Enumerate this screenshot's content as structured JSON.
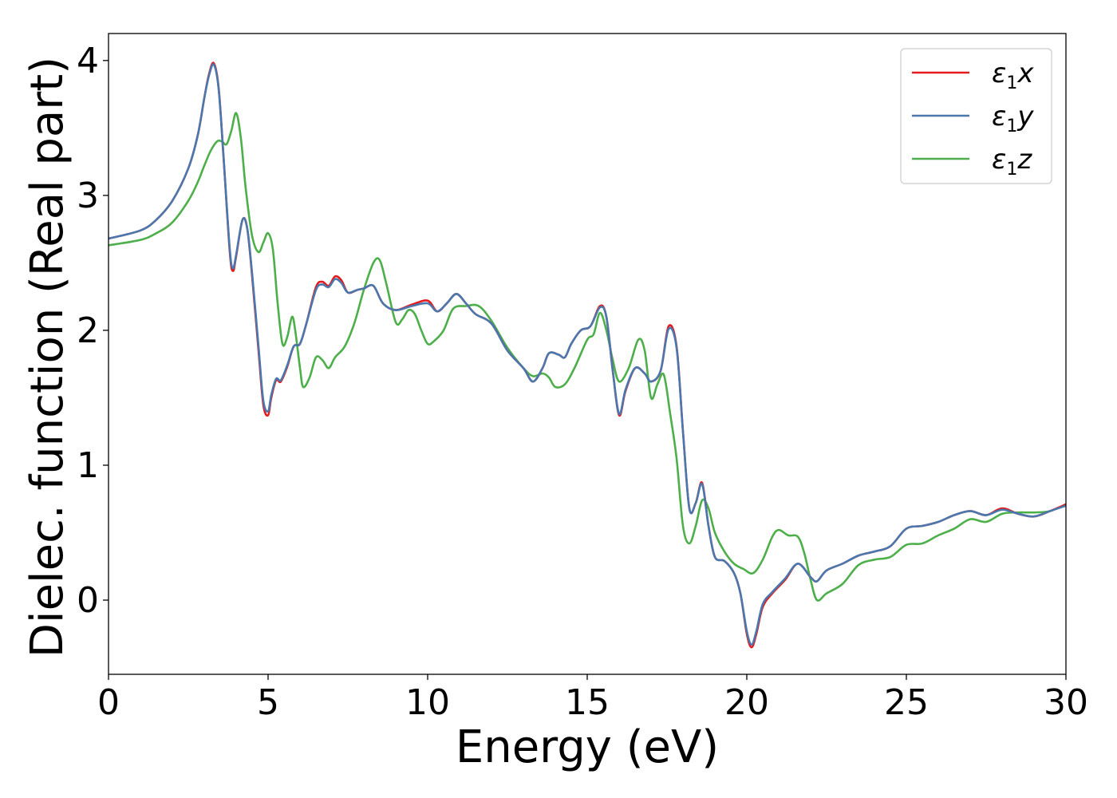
{
  "chart_data": {
    "type": "line",
    "xlabel": "Energy (eV)",
    "ylabel": "Dielec. function (Real part)",
    "xlim": [
      0,
      30
    ],
    "ylim": [
      -0.55,
      4.2
    ],
    "xticks": [
      0,
      5,
      10,
      15,
      20,
      25,
      30
    ],
    "xtick_labels": [
      "0",
      "5",
      "10",
      "15",
      "20",
      "25",
      "30"
    ],
    "yticks": [
      0,
      1,
      2,
      3,
      4
    ],
    "ytick_labels": [
      "0",
      "1",
      "2",
      "3",
      "4"
    ],
    "grid": false,
    "legend_position": "top-right",
    "series": [
      {
        "name": "ε1x",
        "symbol": "ε",
        "subscript": "1",
        "suffix": "x",
        "color": "#e41a1c",
        "x": [
          0,
          1,
          1.5,
          2,
          2.5,
          2.8,
          3.0,
          3.15,
          3.3,
          3.45,
          3.6,
          3.8,
          3.9,
          4.0,
          4.2,
          4.35,
          4.5,
          4.7,
          4.85,
          5.0,
          5.1,
          5.25,
          5.4,
          5.6,
          5.8,
          6.0,
          6.2,
          6.5,
          6.7,
          6.9,
          7.1,
          7.3,
          7.5,
          7.8,
          8.0,
          8.3,
          8.6,
          9.0,
          9.5,
          10.0,
          10.3,
          10.6,
          10.9,
          11.2,
          11.5,
          12.0,
          12.5,
          13.0,
          13.3,
          13.6,
          13.8,
          14.1,
          14.3,
          14.5,
          14.8,
          15.1,
          15.4,
          15.6,
          15.8,
          16.0,
          16.2,
          16.5,
          16.8,
          17.0,
          17.3,
          17.55,
          17.8,
          18.0,
          18.2,
          18.4,
          18.6,
          18.8,
          19.0,
          19.3,
          19.6,
          19.8,
          20.0,
          20.15,
          20.3,
          20.5,
          20.8,
          21.2,
          21.6,
          22.0,
          22.2,
          22.5,
          23.0,
          23.5,
          24.0,
          24.5,
          25.0,
          25.5,
          26.0,
          26.5,
          27.0,
          27.5,
          28.0,
          28.5,
          29.0,
          29.5,
          30.0
        ],
        "y": [
          2.68,
          2.74,
          2.82,
          2.96,
          3.2,
          3.45,
          3.72,
          3.9,
          3.98,
          3.8,
          3.3,
          2.58,
          2.44,
          2.55,
          2.82,
          2.75,
          2.4,
          1.85,
          1.45,
          1.37,
          1.5,
          1.63,
          1.62,
          1.73,
          1.88,
          1.9,
          2.05,
          2.32,
          2.36,
          2.33,
          2.4,
          2.37,
          2.28,
          2.3,
          2.31,
          2.33,
          2.2,
          2.15,
          2.19,
          2.22,
          2.14,
          2.2,
          2.27,
          2.2,
          2.12,
          2.05,
          1.85,
          1.72,
          1.62,
          1.72,
          1.83,
          1.82,
          1.8,
          1.9,
          2.0,
          2.03,
          2.18,
          2.1,
          1.7,
          1.37,
          1.55,
          1.72,
          1.68,
          1.62,
          1.7,
          2.03,
          1.88,
          1.25,
          0.68,
          0.72,
          0.87,
          0.55,
          0.32,
          0.29,
          0.2,
          0.05,
          -0.25,
          -0.35,
          -0.25,
          -0.05,
          0.05,
          0.15,
          0.27,
          0.17,
          0.14,
          0.22,
          0.27,
          0.33,
          0.36,
          0.4,
          0.53,
          0.55,
          0.58,
          0.63,
          0.66,
          0.63,
          0.68,
          0.64,
          0.62,
          0.66,
          0.71
        ]
      },
      {
        "name": "ε1y",
        "symbol": "ε",
        "subscript": "1",
        "suffix": "y",
        "color": "#4a78ae",
        "x": [
          0,
          1,
          1.5,
          2,
          2.5,
          2.8,
          3.0,
          3.15,
          3.3,
          3.45,
          3.6,
          3.8,
          3.9,
          4.0,
          4.2,
          4.35,
          4.5,
          4.7,
          4.85,
          5.0,
          5.1,
          5.25,
          5.4,
          5.6,
          5.8,
          6.0,
          6.2,
          6.5,
          6.7,
          6.9,
          7.1,
          7.3,
          7.5,
          7.8,
          8.0,
          8.3,
          8.6,
          9.0,
          9.5,
          10.0,
          10.3,
          10.6,
          10.9,
          11.2,
          11.5,
          12.0,
          12.5,
          13.0,
          13.3,
          13.6,
          13.8,
          14.1,
          14.3,
          14.5,
          14.8,
          15.1,
          15.4,
          15.6,
          15.8,
          16.0,
          16.2,
          16.5,
          16.8,
          17.0,
          17.3,
          17.55,
          17.8,
          18.0,
          18.2,
          18.4,
          18.6,
          18.8,
          19.0,
          19.3,
          19.6,
          19.8,
          20.0,
          20.15,
          20.3,
          20.5,
          20.8,
          21.2,
          21.6,
          22.0,
          22.2,
          22.5,
          23.0,
          23.5,
          24.0,
          24.5,
          25.0,
          25.5,
          26.0,
          26.5,
          27.0,
          27.5,
          28.0,
          28.5,
          29.0,
          29.5,
          30.0
        ],
        "y": [
          2.68,
          2.74,
          2.82,
          2.96,
          3.2,
          3.45,
          3.72,
          3.89,
          3.97,
          3.79,
          3.3,
          2.6,
          2.46,
          2.56,
          2.82,
          2.75,
          2.42,
          1.88,
          1.48,
          1.4,
          1.52,
          1.64,
          1.63,
          1.74,
          1.88,
          1.9,
          2.05,
          2.3,
          2.34,
          2.32,
          2.38,
          2.35,
          2.28,
          2.3,
          2.31,
          2.33,
          2.2,
          2.15,
          2.18,
          2.2,
          2.14,
          2.2,
          2.27,
          2.2,
          2.12,
          2.05,
          1.85,
          1.72,
          1.62,
          1.72,
          1.83,
          1.82,
          1.8,
          1.9,
          2.0,
          2.03,
          2.17,
          2.1,
          1.7,
          1.38,
          1.56,
          1.72,
          1.68,
          1.62,
          1.7,
          2.01,
          1.87,
          1.25,
          0.68,
          0.72,
          0.86,
          0.55,
          0.32,
          0.29,
          0.2,
          0.05,
          -0.23,
          -0.33,
          -0.23,
          -0.03,
          0.06,
          0.16,
          0.27,
          0.17,
          0.14,
          0.22,
          0.27,
          0.33,
          0.36,
          0.4,
          0.53,
          0.55,
          0.58,
          0.63,
          0.66,
          0.63,
          0.67,
          0.64,
          0.62,
          0.66,
          0.7
        ]
      },
      {
        "name": "ε1z",
        "symbol": "ε",
        "subscript": "1",
        "suffix": "z",
        "color": "#4daf4a",
        "x": [
          0,
          1,
          1.5,
          2,
          2.5,
          2.8,
          3.0,
          3.2,
          3.4,
          3.55,
          3.7,
          3.85,
          4.0,
          4.15,
          4.3,
          4.5,
          4.7,
          4.85,
          5.0,
          5.15,
          5.3,
          5.45,
          5.6,
          5.75,
          5.85,
          6.0,
          6.1,
          6.3,
          6.5,
          6.7,
          6.9,
          7.1,
          7.4,
          7.7,
          8.0,
          8.3,
          8.5,
          8.7,
          9.0,
          9.2,
          9.4,
          9.6,
          9.8,
          10.0,
          10.2,
          10.5,
          10.8,
          11.2,
          11.6,
          12.0,
          12.5,
          13.0,
          13.3,
          13.6,
          13.8,
          14.0,
          14.3,
          14.6,
          15.0,
          15.2,
          15.4,
          15.6,
          15.8,
          16.0,
          16.3,
          16.6,
          16.8,
          17.0,
          17.2,
          17.4,
          17.6,
          17.8,
          18.0,
          18.2,
          18.4,
          18.6,
          18.8,
          19.0,
          19.3,
          19.6,
          19.9,
          20.2,
          20.5,
          20.8,
          21.0,
          21.3,
          21.6,
          21.8,
          22.0,
          22.2,
          22.5,
          23.0,
          23.5,
          24.0,
          24.5,
          25.0,
          25.5,
          26.0,
          26.5,
          27.0,
          27.5,
          28.0,
          28.5,
          29.0,
          29.5,
          30.0
        ],
        "y": [
          2.63,
          2.67,
          2.72,
          2.8,
          2.96,
          3.1,
          3.22,
          3.33,
          3.4,
          3.4,
          3.38,
          3.48,
          3.61,
          3.42,
          3.05,
          2.7,
          2.58,
          2.65,
          2.72,
          2.6,
          2.2,
          1.9,
          1.95,
          2.1,
          2.0,
          1.72,
          1.58,
          1.65,
          1.8,
          1.78,
          1.72,
          1.8,
          1.88,
          2.05,
          2.3,
          2.5,
          2.52,
          2.35,
          2.06,
          2.08,
          2.15,
          2.12,
          2.0,
          1.9,
          1.92,
          2.0,
          2.16,
          2.18,
          2.18,
          2.07,
          1.87,
          1.72,
          1.66,
          1.68,
          1.65,
          1.58,
          1.6,
          1.72,
          1.93,
          1.97,
          2.13,
          2.0,
          1.78,
          1.62,
          1.72,
          1.93,
          1.85,
          1.5,
          1.6,
          1.67,
          1.38,
          1.05,
          0.55,
          0.42,
          0.55,
          0.74,
          0.68,
          0.5,
          0.36,
          0.27,
          0.23,
          0.2,
          0.3,
          0.47,
          0.52,
          0.48,
          0.47,
          0.35,
          0.15,
          0.0,
          0.05,
          0.12,
          0.26,
          0.3,
          0.32,
          0.41,
          0.42,
          0.48,
          0.53,
          0.6,
          0.58,
          0.64,
          0.65,
          0.65,
          0.66,
          0.71
        ]
      }
    ]
  }
}
